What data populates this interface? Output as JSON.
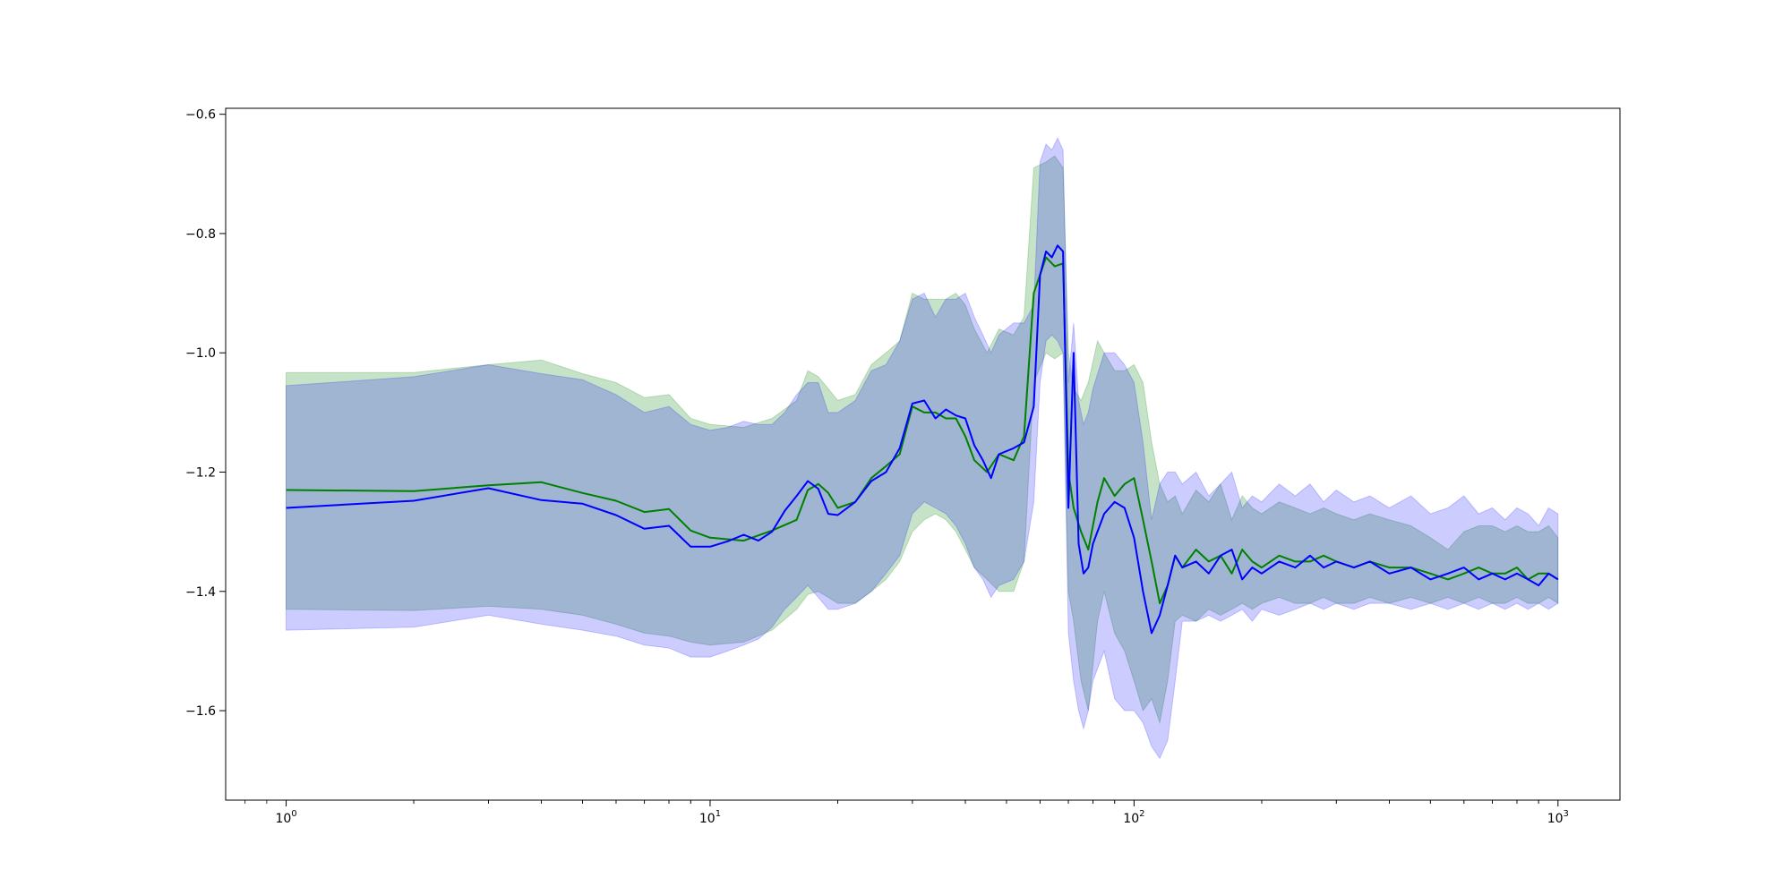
{
  "chart_data": {
    "type": "line",
    "title": "",
    "xlabel": "",
    "ylabel": "",
    "xscale": "log",
    "xlim": [
      0.72,
      1400
    ],
    "ylim": [
      -1.75,
      -0.59
    ],
    "grid": false,
    "legend": "none",
    "x_ticks": [
      {
        "base": "10",
        "exp": "0",
        "value": 1
      },
      {
        "base": "10",
        "exp": "1",
        "value": 10
      },
      {
        "base": "10",
        "exp": "2",
        "value": 100
      },
      {
        "base": "10",
        "exp": "3",
        "value": 1000
      }
    ],
    "y_ticks": [
      {
        "label": "−0.6",
        "value": -0.6
      },
      {
        "label": "−0.8",
        "value": -0.8
      },
      {
        "label": "−1.0",
        "value": -1.0
      },
      {
        "label": "−1.2",
        "value": -1.2
      },
      {
        "label": "−1.4",
        "value": -1.4
      },
      {
        "label": "−1.6",
        "value": -1.6
      }
    ],
    "series": [
      {
        "color": "#008000",
        "band_color": "#008000",
        "band_opacity": 0.22,
        "x": [
          1,
          2,
          3,
          4,
          5,
          6,
          7,
          8,
          9,
          10,
          12,
          14,
          16,
          17,
          18,
          19,
          20,
          22,
          24,
          26,
          28,
          30,
          32,
          34,
          36,
          38,
          40,
          42,
          45,
          48,
          52,
          55,
          58,
          62,
          65,
          68,
          70,
          72,
          75,
          78,
          82,
          85,
          90,
          95,
          100,
          105,
          110,
          115,
          120,
          125,
          130,
          140,
          150,
          160,
          170,
          180,
          190,
          200,
          220,
          240,
          260,
          280,
          300,
          330,
          360,
          400,
          450,
          500,
          550,
          600,
          650,
          700,
          750,
          800,
          850,
          900,
          950,
          1000
        ],
        "y": [
          -1.23,
          -1.232,
          -1.222,
          -1.217,
          -1.235,
          -1.248,
          -1.267,
          -1.262,
          -1.298,
          -1.31,
          -1.315,
          -1.298,
          -1.28,
          -1.23,
          -1.22,
          -1.235,
          -1.26,
          -1.25,
          -1.21,
          -1.19,
          -1.17,
          -1.09,
          -1.1,
          -1.1,
          -1.11,
          -1.11,
          -1.14,
          -1.18,
          -1.2,
          -1.17,
          -1.18,
          -1.14,
          -0.9,
          -0.84,
          -0.855,
          -0.85,
          -1.2,
          -1.26,
          -1.3,
          -1.33,
          -1.25,
          -1.21,
          -1.24,
          -1.22,
          -1.21,
          -1.28,
          -1.35,
          -1.42,
          -1.39,
          -1.34,
          -1.36,
          -1.33,
          -1.35,
          -1.34,
          -1.37,
          -1.33,
          -1.35,
          -1.36,
          -1.34,
          -1.35,
          -1.35,
          -1.34,
          -1.35,
          -1.36,
          -1.35,
          -1.36,
          -1.36,
          -1.37,
          -1.38,
          -1.37,
          -1.36,
          -1.37,
          -1.37,
          -1.36,
          -1.38,
          -1.37,
          -1.37,
          -1.38
        ],
        "lower": [
          -1.43,
          -1.432,
          -1.425,
          -1.43,
          -1.44,
          -1.455,
          -1.47,
          -1.475,
          -1.485,
          -1.49,
          -1.485,
          -1.465,
          -1.43,
          -1.405,
          -1.4,
          -1.41,
          -1.42,
          -1.42,
          -1.4,
          -1.38,
          -1.35,
          -1.3,
          -1.28,
          -1.27,
          -1.28,
          -1.3,
          -1.33,
          -1.36,
          -1.38,
          -1.4,
          -1.4,
          -1.35,
          -1.05,
          -1.0,
          -1.01,
          -1.0,
          -1.4,
          -1.45,
          -1.55,
          -1.6,
          -1.45,
          -1.4,
          -1.47,
          -1.5,
          -1.55,
          -1.6,
          -1.58,
          -1.62,
          -1.55,
          -1.45,
          -1.44,
          -1.45,
          -1.43,
          -1.44,
          -1.43,
          -1.42,
          -1.43,
          -1.42,
          -1.41,
          -1.42,
          -1.42,
          -1.41,
          -1.42,
          -1.42,
          -1.41,
          -1.42,
          -1.41,
          -1.42,
          -1.41,
          -1.42,
          -1.41,
          -1.42,
          -1.42,
          -1.41,
          -1.42,
          -1.42,
          -1.41,
          -1.42
        ],
        "upper": [
          -1.033,
          -1.033,
          -1.02,
          -1.012,
          -1.035,
          -1.05,
          -1.075,
          -1.07,
          -1.11,
          -1.12,
          -1.125,
          -1.11,
          -1.08,
          -1.03,
          -1.04,
          -1.06,
          -1.08,
          -1.07,
          -1.02,
          -1.0,
          -0.98,
          -0.9,
          -0.91,
          -0.91,
          -0.91,
          -0.9,
          -0.92,
          -0.96,
          -1.0,
          -0.96,
          -0.97,
          -0.94,
          -0.69,
          -0.68,
          -0.67,
          -0.69,
          -1.0,
          -1.06,
          -1.08,
          -1.05,
          -0.98,
          -1.0,
          -1.03,
          -1.03,
          -1.02,
          -1.05,
          -1.15,
          -1.22,
          -1.25,
          -1.24,
          -1.27,
          -1.23,
          -1.25,
          -1.22,
          -1.28,
          -1.24,
          -1.26,
          -1.27,
          -1.25,
          -1.26,
          -1.27,
          -1.26,
          -1.27,
          -1.28,
          -1.27,
          -1.28,
          -1.29,
          -1.31,
          -1.33,
          -1.3,
          -1.29,
          -1.29,
          -1.3,
          -1.29,
          -1.3,
          -1.3,
          -1.29,
          -1.31
        ]
      },
      {
        "color": "#0000ff",
        "band_color": "#0000ff",
        "band_opacity": 0.2,
        "x": [
          1,
          2,
          3,
          4,
          5,
          6,
          7,
          8,
          9,
          10,
          11,
          12,
          13,
          14,
          15,
          16,
          17,
          18,
          19,
          20,
          22,
          24,
          26,
          28,
          30,
          32,
          34,
          36,
          38,
          40,
          42,
          44,
          46,
          48,
          52,
          55,
          58,
          60,
          62,
          64,
          66,
          68,
          70,
          72,
          74,
          76,
          78,
          80,
          85,
          90,
          95,
          100,
          105,
          110,
          115,
          120,
          125,
          130,
          140,
          150,
          160,
          170,
          180,
          190,
          200,
          220,
          240,
          260,
          280,
          300,
          330,
          360,
          400,
          450,
          500,
          550,
          600,
          650,
          700,
          750,
          800,
          850,
          900,
          950,
          1000
        ],
        "y": [
          -1.26,
          -1.248,
          -1.227,
          -1.247,
          -1.253,
          -1.272,
          -1.295,
          -1.29,
          -1.325,
          -1.325,
          -1.316,
          -1.305,
          -1.315,
          -1.3,
          -1.265,
          -1.24,
          -1.215,
          -1.228,
          -1.27,
          -1.272,
          -1.25,
          -1.215,
          -1.2,
          -1.16,
          -1.085,
          -1.08,
          -1.11,
          -1.095,
          -1.105,
          -1.11,
          -1.155,
          -1.18,
          -1.21,
          -1.17,
          -1.16,
          -1.15,
          -1.09,
          -0.87,
          -0.83,
          -0.84,
          -0.82,
          -0.83,
          -1.26,
          -1.0,
          -1.32,
          -1.37,
          -1.36,
          -1.32,
          -1.27,
          -1.25,
          -1.26,
          -1.31,
          -1.4,
          -1.47,
          -1.44,
          -1.39,
          -1.34,
          -1.36,
          -1.35,
          -1.37,
          -1.34,
          -1.33,
          -1.38,
          -1.36,
          -1.37,
          -1.35,
          -1.36,
          -1.34,
          -1.36,
          -1.35,
          -1.36,
          -1.35,
          -1.37,
          -1.36,
          -1.38,
          -1.37,
          -1.36,
          -1.38,
          -1.37,
          -1.38,
          -1.37,
          -1.38,
          -1.39,
          -1.37,
          -1.38
        ],
        "lower": [
          -1.465,
          -1.46,
          -1.44,
          -1.455,
          -1.465,
          -1.475,
          -1.49,
          -1.495,
          -1.51,
          -1.51,
          -1.5,
          -1.49,
          -1.48,
          -1.46,
          -1.43,
          -1.41,
          -1.39,
          -1.41,
          -1.43,
          -1.43,
          -1.42,
          -1.4,
          -1.37,
          -1.34,
          -1.27,
          -1.25,
          -1.26,
          -1.27,
          -1.29,
          -1.32,
          -1.36,
          -1.38,
          -1.41,
          -1.39,
          -1.38,
          -1.35,
          -1.25,
          -1.05,
          -0.98,
          -0.97,
          -0.98,
          -1.0,
          -1.47,
          -1.55,
          -1.6,
          -1.63,
          -1.6,
          -1.55,
          -1.5,
          -1.58,
          -1.6,
          -1.6,
          -1.62,
          -1.66,
          -1.68,
          -1.65,
          -1.55,
          -1.45,
          -1.45,
          -1.44,
          -1.45,
          -1.44,
          -1.43,
          -1.45,
          -1.43,
          -1.44,
          -1.43,
          -1.42,
          -1.43,
          -1.42,
          -1.43,
          -1.42,
          -1.42,
          -1.43,
          -1.42,
          -1.43,
          -1.42,
          -1.43,
          -1.42,
          -1.43,
          -1.42,
          -1.43,
          -1.42,
          -1.43,
          -1.42
        ],
        "upper": [
          -1.055,
          -1.04,
          -1.02,
          -1.035,
          -1.045,
          -1.07,
          -1.1,
          -1.09,
          -1.12,
          -1.13,
          -1.125,
          -1.115,
          -1.12,
          -1.12,
          -1.1,
          -1.07,
          -1.05,
          -1.05,
          -1.1,
          -1.1,
          -1.08,
          -1.03,
          -1.02,
          -0.98,
          -0.91,
          -0.9,
          -0.94,
          -0.91,
          -0.91,
          -0.9,
          -0.94,
          -0.97,
          -1.0,
          -0.97,
          -0.95,
          -0.95,
          -0.92,
          -0.68,
          -0.65,
          -0.66,
          -0.64,
          -0.66,
          -1.05,
          -0.95,
          -1.08,
          -1.12,
          -1.1,
          -1.06,
          -1.0,
          -1.0,
          -1.02,
          -1.05,
          -1.15,
          -1.28,
          -1.22,
          -1.2,
          -1.2,
          -1.22,
          -1.2,
          -1.24,
          -1.22,
          -1.2,
          -1.26,
          -1.24,
          -1.25,
          -1.22,
          -1.24,
          -1.22,
          -1.25,
          -1.23,
          -1.25,
          -1.24,
          -1.26,
          -1.24,
          -1.27,
          -1.26,
          -1.24,
          -1.27,
          -1.26,
          -1.28,
          -1.26,
          -1.27,
          -1.29,
          -1.26,
          -1.27
        ]
      }
    ]
  }
}
